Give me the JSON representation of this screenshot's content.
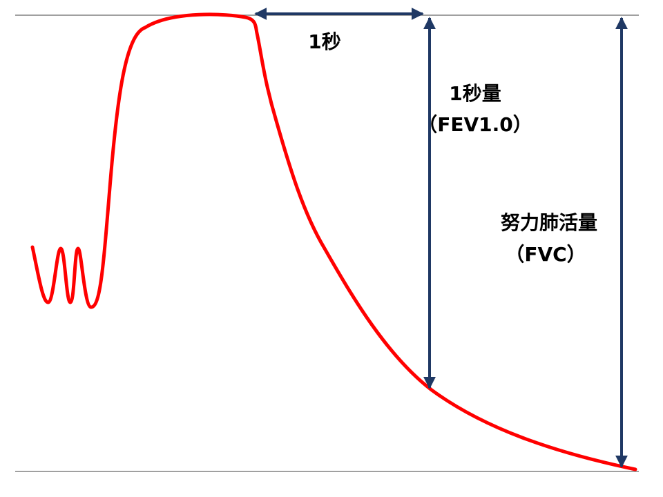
{
  "labels": {
    "one_second": "1秒",
    "fev_title": "1秒量",
    "fev_abbr": "（FEV1.0）",
    "fvc_title": "努力肺活量",
    "fvc_abbr": "（FVC）"
  },
  "colors": {
    "curve": "#ff0000",
    "arrow": "#1f3864",
    "baseline": "#808080",
    "text": "#000000"
  }
}
